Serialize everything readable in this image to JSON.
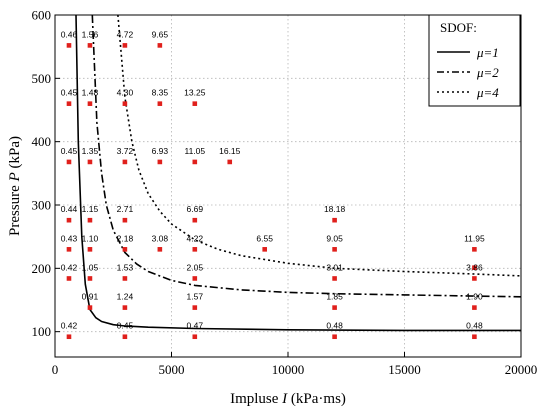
{
  "chart_data": {
    "type": "scatter",
    "x_axis": {
      "label_prefix": "Impluse ",
      "label_var": "I",
      "label_unit": " (kPa·ms)",
      "range": [
        0,
        20000
      ],
      "ticks": [
        0,
        5000,
        10000,
        15000,
        20000
      ]
    },
    "y_axis": {
      "label_prefix": "Pressure ",
      "label_var": "P",
      "label_unit": " (kPa)",
      "range": [
        60,
        600
      ],
      "ticks": [
        100,
        200,
        300,
        400,
        500,
        600
      ]
    },
    "grid": "dotted",
    "legend": {
      "title": "SDOF:",
      "position": "top-right",
      "entries": [
        {
          "label": "μ=1",
          "dash": "solid"
        },
        {
          "label": "μ=2",
          "dash": "dashdot"
        },
        {
          "label": "μ=4",
          "dash": "dotted"
        }
      ]
    },
    "marker_color": "#e0201c",
    "points": [
      {
        "x": 600,
        "y": 552,
        "label": "0.46"
      },
      {
        "x": 1500,
        "y": 552,
        "label": "1.56"
      },
      {
        "x": 3000,
        "y": 552,
        "label": "4.72"
      },
      {
        "x": 4500,
        "y": 552,
        "label": "9.65"
      },
      {
        "x": 600,
        "y": 460,
        "label": "0.45"
      },
      {
        "x": 1500,
        "y": 460,
        "label": "1.48"
      },
      {
        "x": 3000,
        "y": 460,
        "label": "4.30"
      },
      {
        "x": 4500,
        "y": 460,
        "label": "8.35"
      },
      {
        "x": 6000,
        "y": 460,
        "label": "13.25"
      },
      {
        "x": 600,
        "y": 368,
        "label": "0.45"
      },
      {
        "x": 1500,
        "y": 368,
        "label": "1.35"
      },
      {
        "x": 3000,
        "y": 368,
        "label": "3.72"
      },
      {
        "x": 4500,
        "y": 368,
        "label": "6.93"
      },
      {
        "x": 6000,
        "y": 368,
        "label": "11.05"
      },
      {
        "x": 7500,
        "y": 368,
        "label": "16.15"
      },
      {
        "x": 600,
        "y": 276,
        "label": "0.44"
      },
      {
        "x": 1500,
        "y": 276,
        "label": "1.15"
      },
      {
        "x": 3000,
        "y": 276,
        "label": "2.71"
      },
      {
        "x": 6000,
        "y": 276,
        "label": "6.69"
      },
      {
        "x": 12000,
        "y": 276,
        "label": "18.18"
      },
      {
        "x": 600,
        "y": 230,
        "label": "0.43"
      },
      {
        "x": 1500,
        "y": 230,
        "label": "1.10"
      },
      {
        "x": 3000,
        "y": 230,
        "label": "2.18"
      },
      {
        "x": 4500,
        "y": 230,
        "label": "3.08"
      },
      {
        "x": 6000,
        "y": 230,
        "label": "4.22"
      },
      {
        "x": 9000,
        "y": 230,
        "label": "6.55"
      },
      {
        "x": 12000,
        "y": 230,
        "label": "9.05"
      },
      {
        "x": 18000,
        "y": 230,
        "label": "11.95"
      },
      {
        "x": 600,
        "y": 184,
        "label": "0.42"
      },
      {
        "x": 1500,
        "y": 184,
        "label": "1.05"
      },
      {
        "x": 3000,
        "y": 184,
        "label": "1.53"
      },
      {
        "x": 6000,
        "y": 184,
        "label": "2.05"
      },
      {
        "x": 12000,
        "y": 184,
        "label": "3.01"
      },
      {
        "x": 18000,
        "y": 184,
        "label": "3.86"
      },
      {
        "x": 1500,
        "y": 138,
        "label": "0.91"
      },
      {
        "x": 3000,
        "y": 138,
        "label": "1.24"
      },
      {
        "x": 6000,
        "y": 138,
        "label": "1.57"
      },
      {
        "x": 12000,
        "y": 138,
        "label": "1.85"
      },
      {
        "x": 18000,
        "y": 138,
        "label": "1.90"
      },
      {
        "x": 600,
        "y": 92,
        "label": "0.42"
      },
      {
        "x": 3000,
        "y": 92,
        "label": "0.45"
      },
      {
        "x": 6000,
        "y": 92,
        "label": "0.47"
      },
      {
        "x": 12000,
        "y": 92,
        "label": "0.48"
      },
      {
        "x": 18000,
        "y": 92,
        "label": "0.48"
      }
    ],
    "extra_markers": [
      {
        "x": 18000,
        "y": 201
      }
    ],
    "curves": [
      {
        "mu": 1,
        "dash": "solid",
        "x": [
          900,
          1000,
          1150,
          1300,
          1500,
          1750,
          2000,
          2500,
          3000,
          4000,
          6000,
          10000,
          15000,
          20000
        ],
        "y": [
          600,
          400,
          250,
          175,
          135,
          122,
          116,
          111,
          109,
          107,
          105,
          103,
          102,
          102
        ]
      },
      {
        "mu": 2,
        "dash": "dashdot",
        "x": [
          1600,
          1800,
          2000,
          2200,
          2500,
          3000,
          3500,
          4000,
          5000,
          6000,
          8000,
          10000,
          12000,
          15000,
          20000
        ],
        "y": [
          600,
          430,
          350,
          300,
          260,
          225,
          207,
          195,
          181,
          173,
          166,
          162,
          160,
          158,
          155
        ]
      },
      {
        "mu": 4,
        "dash": "dotted",
        "x": [
          2700,
          3000,
          3300,
          3600,
          4000,
          4500,
          5000,
          6000,
          7000,
          8000,
          10000,
          12000,
          15000,
          18000,
          20000
        ],
        "y": [
          600,
          470,
          400,
          355,
          318,
          290,
          270,
          245,
          230,
          220,
          208,
          200,
          195,
          191,
          188
        ]
      }
    ]
  }
}
